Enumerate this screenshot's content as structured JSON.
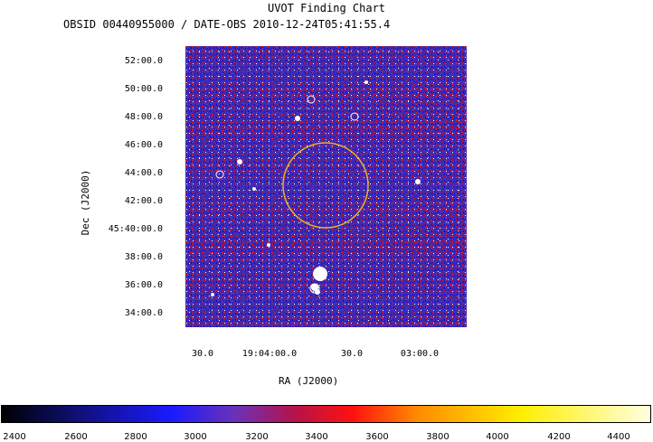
{
  "header": {
    "title": "UVOT Finding Chart",
    "subtitle": "OBSID 00440955000 / DATE-OBS 2010-12-24T05:41:55.4"
  },
  "axes": {
    "xlabel": "RA (J2000)",
    "ylabel": "Dec (J2000)",
    "dec_ticks": [
      "52:00.0",
      "50:00.0",
      "48:00.0",
      "46:00.0",
      "44:00.0",
      "42:00.0",
      "45:40:00.0",
      "38:00.0",
      "36:00.0",
      "34:00.0"
    ],
    "ra_ticks": [
      "30.0",
      "19:04:00.0",
      "30.0",
      "03:00.0"
    ]
  },
  "colorbar": {
    "labels": [
      "2400",
      "2600",
      "2800",
      "3000",
      "3200",
      "3400",
      "3600",
      "3800",
      "4000",
      "4200",
      "4400"
    ]
  },
  "colors": {
    "error_circle": "#f0b020",
    "background_noise": "#3a2aa8"
  }
}
